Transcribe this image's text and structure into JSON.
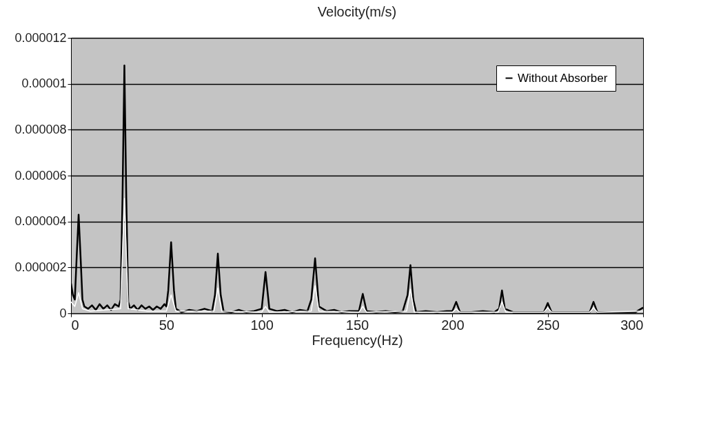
{
  "chart_data": {
    "type": "line",
    "title": "Velocity(m/s)",
    "xlabel": "Frequency(Hz)",
    "xlim": [
      0,
      300
    ],
    "xticks": [
      0,
      50,
      100,
      150,
      200,
      250,
      300
    ],
    "ylim": [
      0,
      1.2e-05
    ],
    "yticks": [
      0,
      {
        "value": 2e-06,
        "label": "0.000002"
      },
      {
        "value": 4e-06,
        "label": "0.000004"
      },
      {
        "value": 6e-06,
        "label": "0.000006"
      },
      {
        "value": 8e-06,
        "label": "0.000008"
      },
      {
        "value": 1e-05,
        "label": "0.00001"
      },
      {
        "value": 1.2e-05,
        "label": "0.000012"
      }
    ],
    "grid": "y",
    "legend": "top right",
    "marker": "none",
    "line_style": "solid",
    "series": [
      {
        "name": "Without Absorber",
        "color": "#000000",
        "x": [
          0,
          1,
          2,
          3,
          4,
          5,
          6,
          7,
          9,
          11,
          13,
          15,
          17,
          19,
          21,
          23,
          25,
          26,
          27,
          28,
          29,
          30,
          31,
          33,
          35,
          37,
          39,
          41,
          43,
          45,
          47,
          49,
          50,
          51,
          52.5,
          54,
          55,
          58,
          62,
          66,
          70,
          74,
          75.5,
          77,
          78.5,
          80,
          84,
          88,
          92,
          96,
          100,
          102,
          104,
          108,
          112,
          116,
          120,
          124,
          126,
          128,
          130,
          134,
          138,
          142,
          146,
          151,
          153,
          155,
          160,
          165,
          170,
          174,
          176.5,
          178,
          179.5,
          181,
          186,
          192,
          197,
          200,
          202,
          204,
          210,
          216,
          222,
          224.5,
          226,
          227.5,
          232,
          240,
          248,
          250,
          252,
          260,
          268,
          272,
          274,
          276,
          285,
          296,
          300
        ],
        "values": [
          1.3e-06,
          8e-07,
          6e-07,
          2.5e-06,
          4.3e-06,
          2.5e-06,
          6e-07,
          3e-07,
          2e-07,
          3.5e-07,
          1.5e-07,
          4e-07,
          2e-07,
          3.5e-07,
          1.5e-07,
          4e-07,
          3e-07,
          6e-07,
          5e-06,
          1.08e-05,
          5e-06,
          5e-07,
          2e-07,
          3.5e-07,
          1.5e-07,
          3.5e-07,
          2e-07,
          3e-07,
          1.5e-07,
          3e-07,
          2e-07,
          4e-07,
          3e-07,
          1e-06,
          3.1e-06,
          1e-06,
          2e-07,
          5e-08,
          1.5e-07,
          1e-07,
          2e-07,
          1e-07,
          8e-07,
          2.6e-06,
          8e-07,
          1e-07,
          5e-08,
          1.5e-07,
          5e-08,
          1e-07,
          2e-07,
          1.8e-06,
          2e-07,
          1e-07,
          1.5e-07,
          5e-08,
          1.5e-07,
          1e-07,
          6e-07,
          2.4e-06,
          3e-07,
          1e-07,
          1.5e-07,
          5e-08,
          1e-07,
          1e-07,
          8.5e-07,
          1e-07,
          5e-08,
          1e-07,
          5e-08,
          1e-07,
          8e-07,
          2.1e-06,
          6e-07,
          5e-08,
          1e-07,
          5e-08,
          1e-07,
          1e-07,
          5e-07,
          5e-08,
          5e-08,
          1e-07,
          5e-08,
          2e-07,
          1e-06,
          2e-07,
          5e-08,
          5e-08,
          5e-08,
          4.5e-07,
          5e-08,
          5e-08,
          5e-08,
          5e-08,
          5e-07,
          5e-08,
          5e-08,
          5e-08,
          2.5e-07
        ]
      },
      {
        "color": "#ffffff",
        "x": [
          0,
          2,
          4,
          6,
          10,
          26,
          28,
          30,
          40,
          50,
          52.5,
          55,
          75,
          77,
          79,
          100,
          102,
          104,
          126,
          128,
          130,
          151,
          153,
          155,
          176,
          178,
          180,
          200,
          202,
          204,
          224,
          226,
          228,
          248,
          250,
          252,
          272,
          274,
          276,
          300
        ],
        "values": [
          5e-07,
          3e-07,
          9e-07,
          2e-07,
          1e-07,
          2e-07,
          5e-06,
          2e-07,
          1e-07,
          1e-07,
          8e-07,
          1e-07,
          1e-07,
          1.1e-06,
          1e-07,
          5e-08,
          3e-07,
          5e-08,
          1e-07,
          1.2e-06,
          1e-07,
          5e-08,
          3e-07,
          5e-08,
          1e-07,
          1.05e-06,
          5e-08,
          5e-08,
          2e-07,
          5e-08,
          5e-08,
          5e-07,
          5e-08,
          5e-08,
          2.5e-07,
          5e-08,
          5e-08,
          2.5e-07,
          5e-08,
          1e-07
        ]
      }
    ]
  }
}
